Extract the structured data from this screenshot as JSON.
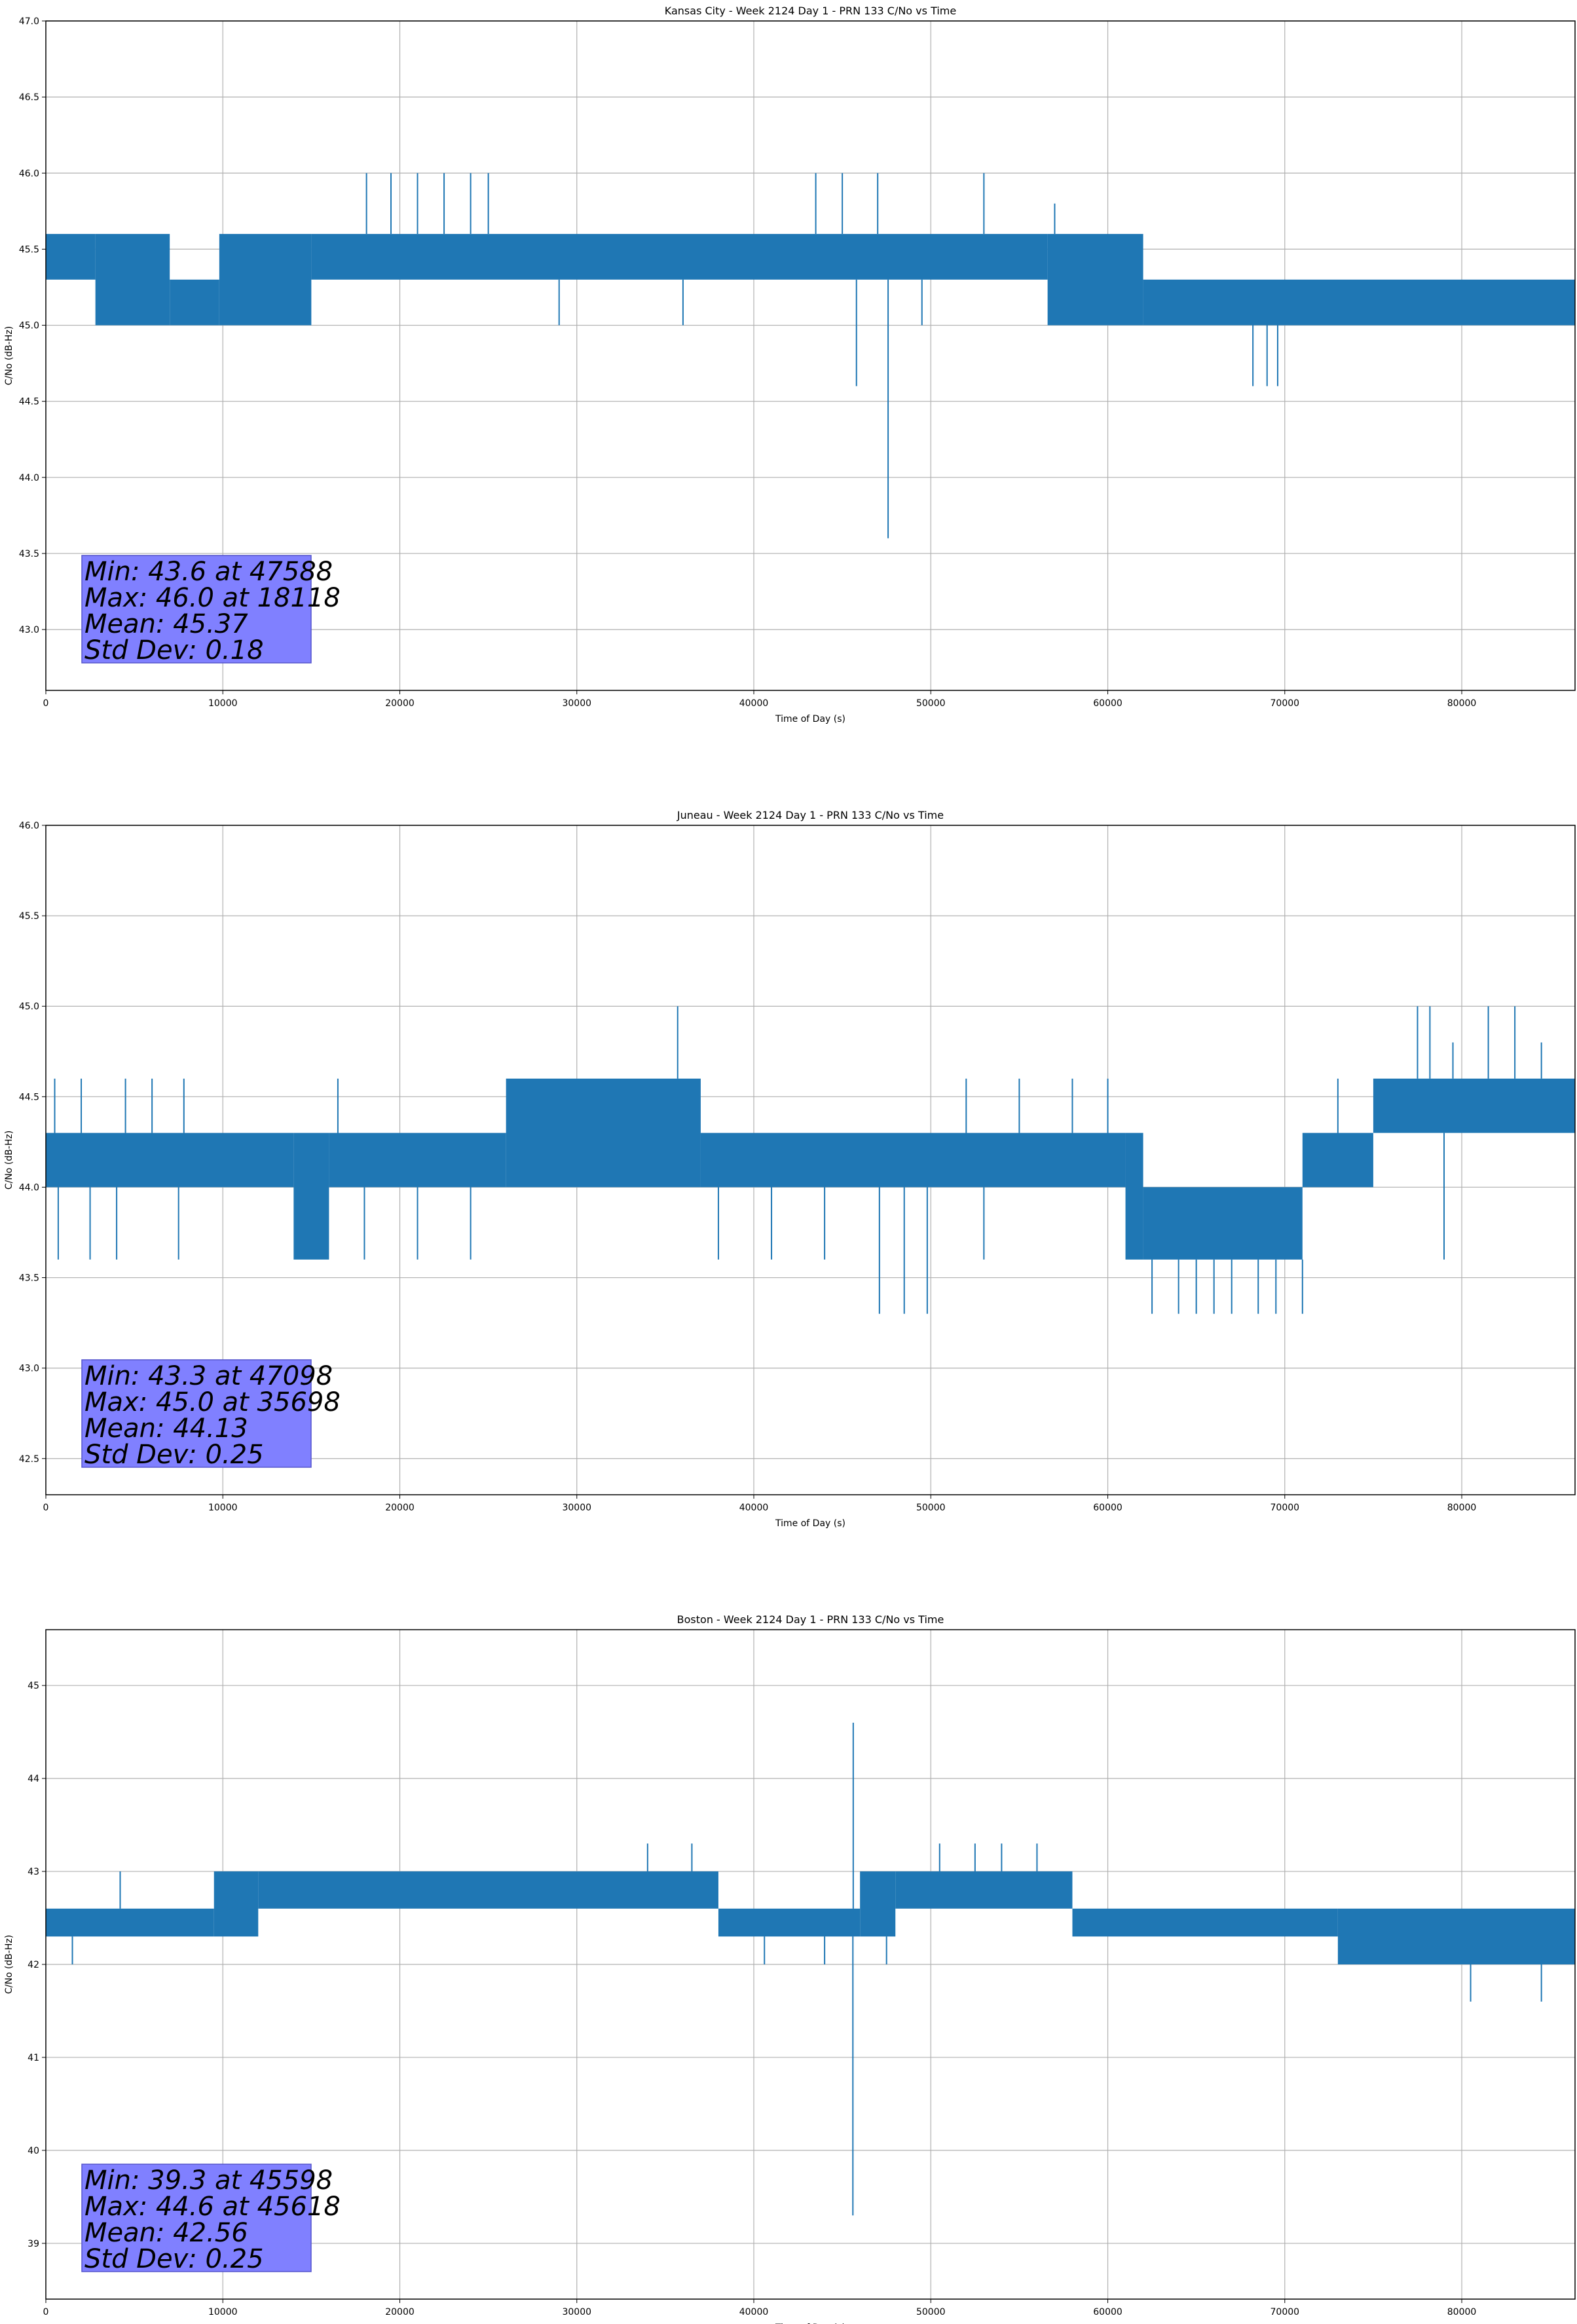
{
  "colors": {
    "series": "#1f77b4",
    "grid": "#b0b0b0",
    "statbox": "#8080ff"
  },
  "chart_data": [
    {
      "type": "line",
      "title": "Kansas City - Week 2124 Day 1 - PRN 133 C/No vs Time",
      "xlabel": "Time of Day (s)",
      "ylabel": "C/No (dB-Hz)",
      "xlim": [
        0,
        86400
      ],
      "ylim": [
        42.6,
        47.0
      ],
      "xticks": [
        0,
        10000,
        20000,
        30000,
        40000,
        50000,
        60000,
        70000,
        80000
      ],
      "xtick_labels": [
        "0",
        "10000",
        "20000",
        "30000",
        "40000",
        "50000",
        "60000",
        "70000",
        "80000"
      ],
      "yticks": [
        43.0,
        43.5,
        44.0,
        44.5,
        45.0,
        45.5,
        46.0,
        46.5,
        47.0
      ],
      "ytick_labels": [
        "43.0",
        "43.5",
        "44.0",
        "44.5",
        "45.0",
        "45.5",
        "46.0",
        "46.5",
        "47.0"
      ],
      "grid": true,
      "bands": [
        {
          "x": [
            0,
            2800
          ],
          "lo": 45.3,
          "hi": 45.6
        },
        {
          "x": [
            2800,
            7000
          ],
          "lo": 45.0,
          "hi": 45.6
        },
        {
          "x": [
            7000,
            9800
          ],
          "lo": 45.0,
          "hi": 45.3
        },
        {
          "x": [
            9800,
            15000
          ],
          "lo": 45.0,
          "hi": 45.6
        },
        {
          "x": [
            15000,
            56600
          ],
          "lo": 45.3,
          "hi": 45.6
        },
        {
          "x": [
            56600,
            62000
          ],
          "lo": 45.0,
          "hi": 45.6
        },
        {
          "x": [
            62000,
            86400
          ],
          "lo": 45.0,
          "hi": 45.3
        }
      ],
      "spikes": [
        {
          "x": 18118,
          "y": 46.0
        },
        {
          "x": 19500,
          "y": 46.0
        },
        {
          "x": 21000,
          "y": 46.0
        },
        {
          "x": 22500,
          "y": 46.0
        },
        {
          "x": 24000,
          "y": 46.0
        },
        {
          "x": 25000,
          "y": 46.0
        },
        {
          "x": 43500,
          "y": 46.0
        },
        {
          "x": 45000,
          "y": 46.0
        },
        {
          "x": 47000,
          "y": 46.0
        },
        {
          "x": 53000,
          "y": 46.0
        },
        {
          "x": 57000,
          "y": 45.8
        },
        {
          "x": 45800,
          "y": 44.6
        },
        {
          "x": 47588,
          "y": 43.6
        },
        {
          "x": 68200,
          "y": 44.6
        },
        {
          "x": 69000,
          "y": 44.6
        },
        {
          "x": 69600,
          "y": 44.6
        },
        {
          "x": 3000,
          "y": 45.0
        },
        {
          "x": 29000,
          "y": 45.0
        },
        {
          "x": 36000,
          "y": 45.0
        },
        {
          "x": 49500,
          "y": 45.0
        }
      ],
      "stats": {
        "min": "Min: 43.6 at 47588",
        "max": "Max: 46.0 at 18118",
        "mean": "Mean: 45.37",
        "std": "Std Dev: 0.18"
      }
    },
    {
      "type": "line",
      "title": "Juneau - Week 2124 Day 1 - PRN 133 C/No vs Time",
      "xlabel": "Time of Day (s)",
      "ylabel": "C/No (dB-Hz)",
      "xlim": [
        0,
        86400
      ],
      "ylim": [
        42.3,
        46.0
      ],
      "xticks": [
        0,
        10000,
        20000,
        30000,
        40000,
        50000,
        60000,
        70000,
        80000
      ],
      "xtick_labels": [
        "0",
        "10000",
        "20000",
        "30000",
        "40000",
        "50000",
        "60000",
        "70000",
        "80000"
      ],
      "yticks": [
        42.5,
        43.0,
        43.5,
        44.0,
        44.5,
        45.0,
        45.5,
        46.0
      ],
      "ytick_labels": [
        "42.5",
        "43.0",
        "43.5",
        "44.0",
        "44.5",
        "45.0",
        "45.5",
        "46.0"
      ],
      "grid": true,
      "bands": [
        {
          "x": [
            0,
            14000
          ],
          "lo": 44.0,
          "hi": 44.3
        },
        {
          "x": [
            14000,
            16000
          ],
          "lo": 43.6,
          "hi": 44.3
        },
        {
          "x": [
            16000,
            26000
          ],
          "lo": 44.0,
          "hi": 44.3
        },
        {
          "x": [
            26000,
            37000
          ],
          "lo": 44.0,
          "hi": 44.6
        },
        {
          "x": [
            37000,
            61000
          ],
          "lo": 44.0,
          "hi": 44.3
        },
        {
          "x": [
            61000,
            62000
          ],
          "lo": 43.6,
          "hi": 44.3
        },
        {
          "x": [
            62000,
            71000
          ],
          "lo": 43.6,
          "hi": 44.0
        },
        {
          "x": [
            71000,
            75000
          ],
          "lo": 44.0,
          "hi": 44.3
        },
        {
          "x": [
            75000,
            86400
          ],
          "lo": 44.3,
          "hi": 44.6
        }
      ],
      "spikes": [
        {
          "x": 35698,
          "y": 45.0
        },
        {
          "x": 77500,
          "y": 45.0
        },
        {
          "x": 78200,
          "y": 45.0
        },
        {
          "x": 79500,
          "y": 44.8
        },
        {
          "x": 81500,
          "y": 45.0
        },
        {
          "x": 83000,
          "y": 45.0
        },
        {
          "x": 84500,
          "y": 44.8
        },
        {
          "x": 47098,
          "y": 43.3
        },
        {
          "x": 48500,
          "y": 43.3
        },
        {
          "x": 49800,
          "y": 43.3
        },
        {
          "x": 62500,
          "y": 43.3
        },
        {
          "x": 64000,
          "y": 43.3
        },
        {
          "x": 65000,
          "y": 43.3
        },
        {
          "x": 66000,
          "y": 43.3
        },
        {
          "x": 67000,
          "y": 43.3
        },
        {
          "x": 68500,
          "y": 43.3
        },
        {
          "x": 69500,
          "y": 43.3
        },
        {
          "x": 71000,
          "y": 43.3
        },
        {
          "x": 700,
          "y": 43.6
        },
        {
          "x": 2500,
          "y": 43.6
        },
        {
          "x": 4000,
          "y": 43.6
        },
        {
          "x": 7500,
          "y": 43.6
        },
        {
          "x": 18000,
          "y": 43.6
        },
        {
          "x": 21000,
          "y": 43.6
        },
        {
          "x": 24000,
          "y": 43.6
        },
        {
          "x": 38000,
          "y": 43.6
        },
        {
          "x": 41000,
          "y": 43.6
        },
        {
          "x": 44000,
          "y": 43.6
        },
        {
          "x": 53000,
          "y": 43.6
        },
        {
          "x": 79000,
          "y": 43.6
        },
        {
          "x": 500,
          "y": 44.6
        },
        {
          "x": 2000,
          "y": 44.6
        },
        {
          "x": 4500,
          "y": 44.6
        },
        {
          "x": 6000,
          "y": 44.6
        },
        {
          "x": 7800,
          "y": 44.6
        },
        {
          "x": 16500,
          "y": 44.6
        },
        {
          "x": 52000,
          "y": 44.6
        },
        {
          "x": 55000,
          "y": 44.6
        },
        {
          "x": 58000,
          "y": 44.6
        },
        {
          "x": 60000,
          "y": 44.6
        },
        {
          "x": 73000,
          "y": 44.6
        }
      ],
      "stats": {
        "min": "Min: 43.3 at 47098",
        "max": "Max: 45.0 at 35698",
        "mean": "Mean: 44.13",
        "std": "Std Dev: 0.25"
      }
    },
    {
      "type": "line",
      "title": "Boston - Week 2124 Day 1 - PRN 133 C/No vs Time",
      "xlabel": "Time of Day (s)",
      "ylabel": "C/No (dB-Hz)",
      "xlim": [
        0,
        86400
      ],
      "ylim": [
        38.4,
        45.6
      ],
      "xticks": [
        0,
        10000,
        20000,
        30000,
        40000,
        50000,
        60000,
        70000,
        80000
      ],
      "xtick_labels": [
        "0",
        "10000",
        "20000",
        "30000",
        "40000",
        "50000",
        "60000",
        "70000",
        "80000"
      ],
      "yticks": [
        39,
        40,
        41,
        42,
        43,
        44,
        45
      ],
      "ytick_labels": [
        "39",
        "40",
        "41",
        "42",
        "43",
        "44",
        "45"
      ],
      "grid": true,
      "bands": [
        {
          "x": [
            0,
            9500
          ],
          "lo": 42.3,
          "hi": 42.6
        },
        {
          "x": [
            9500,
            12000
          ],
          "lo": 42.3,
          "hi": 43.0
        },
        {
          "x": [
            12000,
            38000
          ],
          "lo": 42.6,
          "hi": 43.0
        },
        {
          "x": [
            38000,
            46000
          ],
          "lo": 42.3,
          "hi": 42.6
        },
        {
          "x": [
            46000,
            48000
          ],
          "lo": 42.3,
          "hi": 43.0
        },
        {
          "x": [
            48000,
            58000
          ],
          "lo": 42.6,
          "hi": 43.0
        },
        {
          "x": [
            58000,
            73000
          ],
          "lo": 42.3,
          "hi": 42.6
        },
        {
          "x": [
            73000,
            86400
          ],
          "lo": 42.0,
          "hi": 42.6
        }
      ],
      "spikes": [
        {
          "x": 45618,
          "y": 44.6
        },
        {
          "x": 45598,
          "y": 39.3
        },
        {
          "x": 80500,
          "y": 41.6
        },
        {
          "x": 84500,
          "y": 41.6
        },
        {
          "x": 34000,
          "y": 43.3
        },
        {
          "x": 36500,
          "y": 43.3
        },
        {
          "x": 50500,
          "y": 43.3
        },
        {
          "x": 52500,
          "y": 43.3
        },
        {
          "x": 54000,
          "y": 43.3
        },
        {
          "x": 56000,
          "y": 43.3
        },
        {
          "x": 4200,
          "y": 43.0
        },
        {
          "x": 1500,
          "y": 42.0
        },
        {
          "x": 40600,
          "y": 42.0
        },
        {
          "x": 44000,
          "y": 42.0
        },
        {
          "x": 47500,
          "y": 42.0
        }
      ],
      "stats": {
        "min": "Min: 39.3 at 45598",
        "max": "Max: 44.6 at 45618",
        "mean": "Mean: 42.56",
        "std": "Std Dev: 0.25"
      }
    }
  ]
}
